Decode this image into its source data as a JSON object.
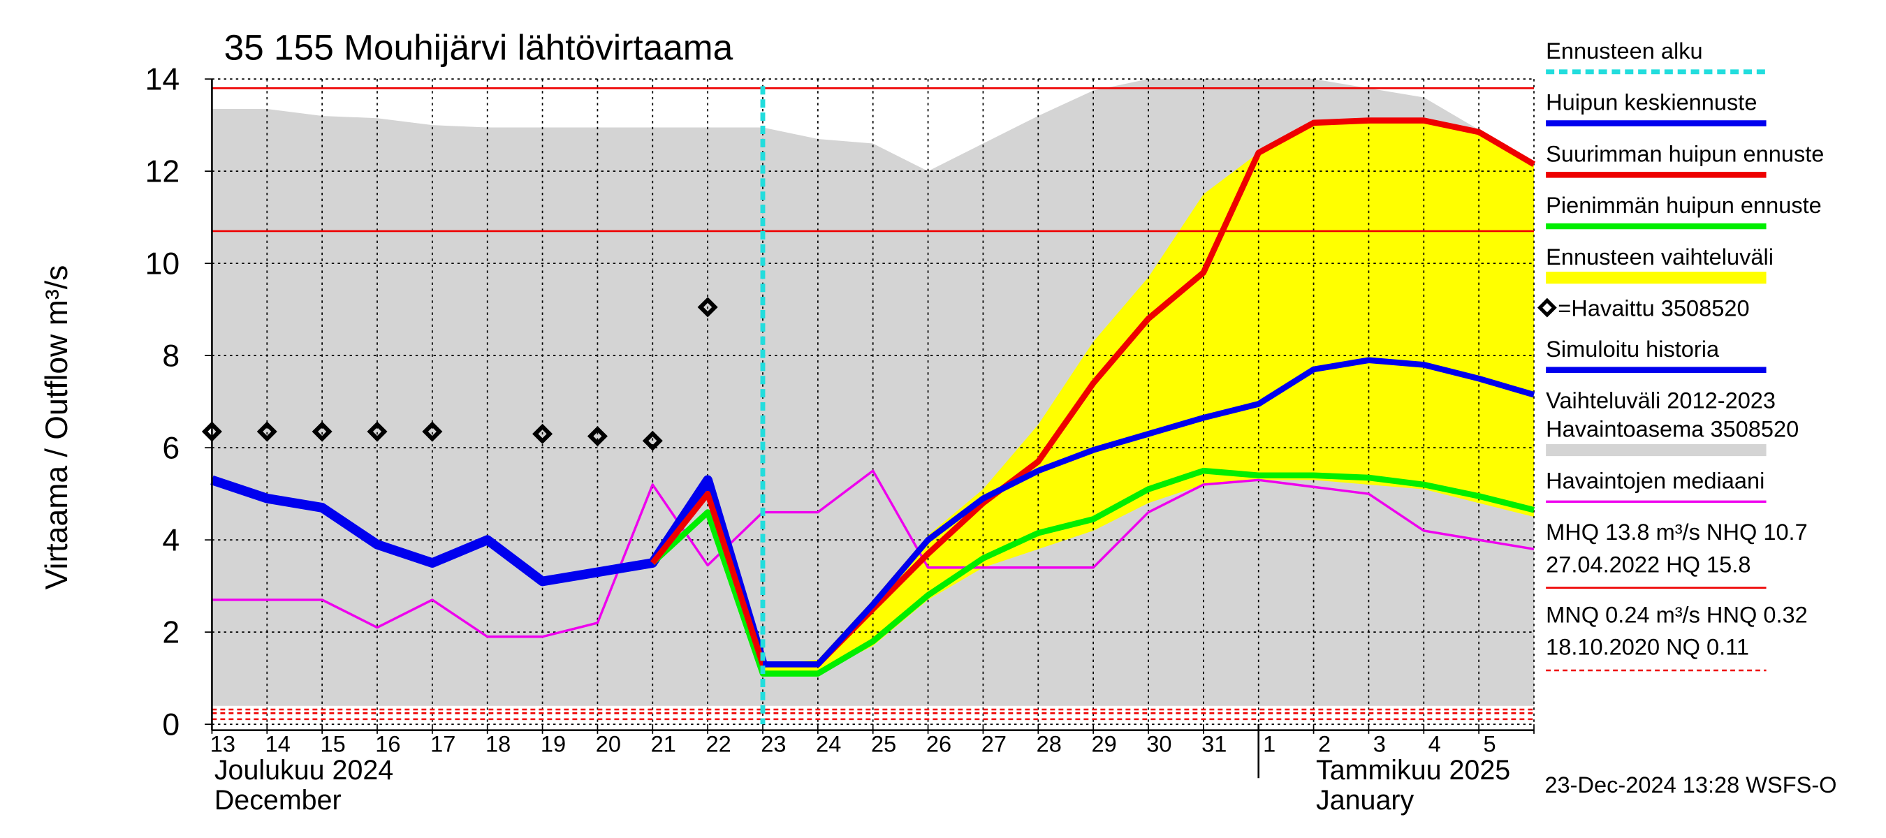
{
  "chart_data": {
    "type": "line",
    "title": "35 155 Mouhijärvi lähtövirtaama",
    "y_label": "Virtaama / Outflow    m³/s",
    "categories": [
      "13",
      "14",
      "15",
      "16",
      "17",
      "18",
      "19",
      "20",
      "21",
      "22",
      "23",
      "24",
      "25",
      "26",
      "27",
      "28",
      "29",
      "30",
      "31",
      "1",
      "2",
      "3",
      "4",
      "5",
      null
    ],
    "month_labels": [
      [
        "Joulukuu  2024",
        "December"
      ],
      [
        "Tammikuu  2025",
        "January"
      ]
    ],
    "ylim": [
      0,
      14
    ],
    "yticks": [
      0,
      2,
      4,
      6,
      8,
      10,
      12,
      14
    ],
    "grid": true,
    "forecast_start": {
      "name": "Ennusteen alku",
      "color": "#22dddd",
      "x": 10
    },
    "series": [
      {
        "name": "Huipun keskiennuste",
        "color": "#0000ee",
        "style": "line",
        "width": 5,
        "values": [
          null,
          null,
          null,
          null,
          null,
          null,
          null,
          null,
          null,
          null,
          1.3,
          1.3,
          2.6,
          4.0,
          4.9,
          5.5,
          5.95,
          6.3,
          6.65,
          6.95,
          7.7,
          7.9,
          7.8,
          7.5,
          7.15
        ]
      },
      {
        "name": "Suurimman huipun ennuste",
        "color": "#ee0000",
        "style": "line",
        "width": 5,
        "values": [
          null,
          null,
          null,
          null,
          null,
          null,
          null,
          null,
          3.5,
          5.0,
          1.3,
          1.3,
          2.5,
          3.7,
          4.8,
          5.7,
          7.4,
          8.8,
          9.8,
          12.4,
          13.05,
          13.1,
          13.1,
          12.85,
          12.15
        ]
      },
      {
        "name": "Pienimmän huipun ennuste",
        "color": "#00ee00",
        "style": "line",
        "width": 5,
        "values": [
          null,
          null,
          null,
          null,
          null,
          null,
          null,
          null,
          3.5,
          4.6,
          1.1,
          1.1,
          1.8,
          2.8,
          3.6,
          4.15,
          4.45,
          5.1,
          5.5,
          5.4,
          5.4,
          5.35,
          5.2,
          4.95,
          4.65
        ]
      },
      {
        "name": "Ennusteen vaihteluväli",
        "color": "#ffff00",
        "style": "band",
        "upper": [
          null,
          null,
          null,
          null,
          null,
          null,
          null,
          null,
          null,
          null,
          1.3,
          1.4,
          2.7,
          4.1,
          5.1,
          6.5,
          8.3,
          9.7,
          11.5,
          12.4,
          13.05,
          13.1,
          13.1,
          12.85,
          12.15
        ],
        "lower": [
          null,
          null,
          null,
          null,
          null,
          null,
          null,
          null,
          null,
          null,
          1.1,
          1.1,
          1.7,
          2.7,
          3.4,
          3.8,
          4.2,
          4.8,
          5.2,
          5.3,
          5.3,
          5.2,
          5.1,
          4.8,
          4.5
        ]
      },
      {
        "name": "=Havaittu 3508520",
        "color": "#000000",
        "style": "marker",
        "values": [
          6.35,
          6.35,
          6.35,
          6.35,
          6.35,
          null,
          6.3,
          6.25,
          6.15,
          9.05,
          null,
          null,
          null,
          null,
          null,
          null,
          null,
          null,
          null,
          null,
          null,
          null,
          null,
          null,
          null
        ]
      },
      {
        "name": "Simuloitu historia",
        "color": "#0000ee",
        "style": "line",
        "width": 8,
        "values": [
          5.3,
          4.9,
          4.7,
          3.9,
          3.5,
          4.0,
          3.1,
          3.3,
          3.5,
          5.3,
          1.3,
          null,
          null,
          null,
          null,
          null,
          null,
          null,
          null,
          null,
          null,
          null,
          null,
          null,
          null
        ]
      },
      {
        "name": [
          "Vaihteluväli 2012-2023",
          " Havaintoasema 3508520"
        ],
        "color": "#d4d4d4",
        "style": "band",
        "upper": [
          13.35,
          13.35,
          13.2,
          13.15,
          13.0,
          12.95,
          12.95,
          12.95,
          12.95,
          12.95,
          12.95,
          12.7,
          12.6,
          12.0,
          12.6,
          13.2,
          13.75,
          14.0,
          14.0,
          14.0,
          14.0,
          13.8,
          13.6,
          12.9,
          12.1
        ],
        "lower": [
          0.4,
          0.4,
          0.4,
          0.4,
          0.4,
          0.4,
          0.4,
          0.4,
          0.4,
          0.4,
          0.4,
          0.4,
          0.4,
          0.4,
          0.4,
          0.4,
          0.4,
          0.4,
          0.4,
          0.4,
          0.4,
          0.4,
          0.4,
          0.4,
          0.4
        ]
      },
      {
        "name": "Havaintojen mediaani",
        "color": "#ee00ee",
        "style": "line",
        "width": 2,
        "values": [
          2.7,
          2.7,
          2.7,
          2.1,
          2.7,
          1.9,
          1.9,
          2.2,
          5.2,
          3.45,
          4.6,
          4.6,
          5.5,
          3.4,
          3.4,
          3.4,
          3.4,
          4.6,
          5.2,
          5.3,
          5.15,
          5.0,
          4.2,
          4.0,
          3.8
        ]
      }
    ],
    "reference_lines": [
      {
        "label": [
          "MHQ 13.8 m³/s NHQ 10.7",
          "27.04.2022 HQ 15.8"
        ],
        "color": "#ee0000",
        "dashed": false,
        "values": [
          13.8,
          10.7
        ]
      },
      {
        "label": [
          "MNQ 0.24 m³/s HNQ 0.32",
          "18.10.2020 NQ 0.11"
        ],
        "color": "#ee0000",
        "dashed": true,
        "values": [
          0.32,
          0.24,
          0.11
        ]
      }
    ],
    "timestamp": "23-Dec-2024 13:28 WSFS-O"
  }
}
